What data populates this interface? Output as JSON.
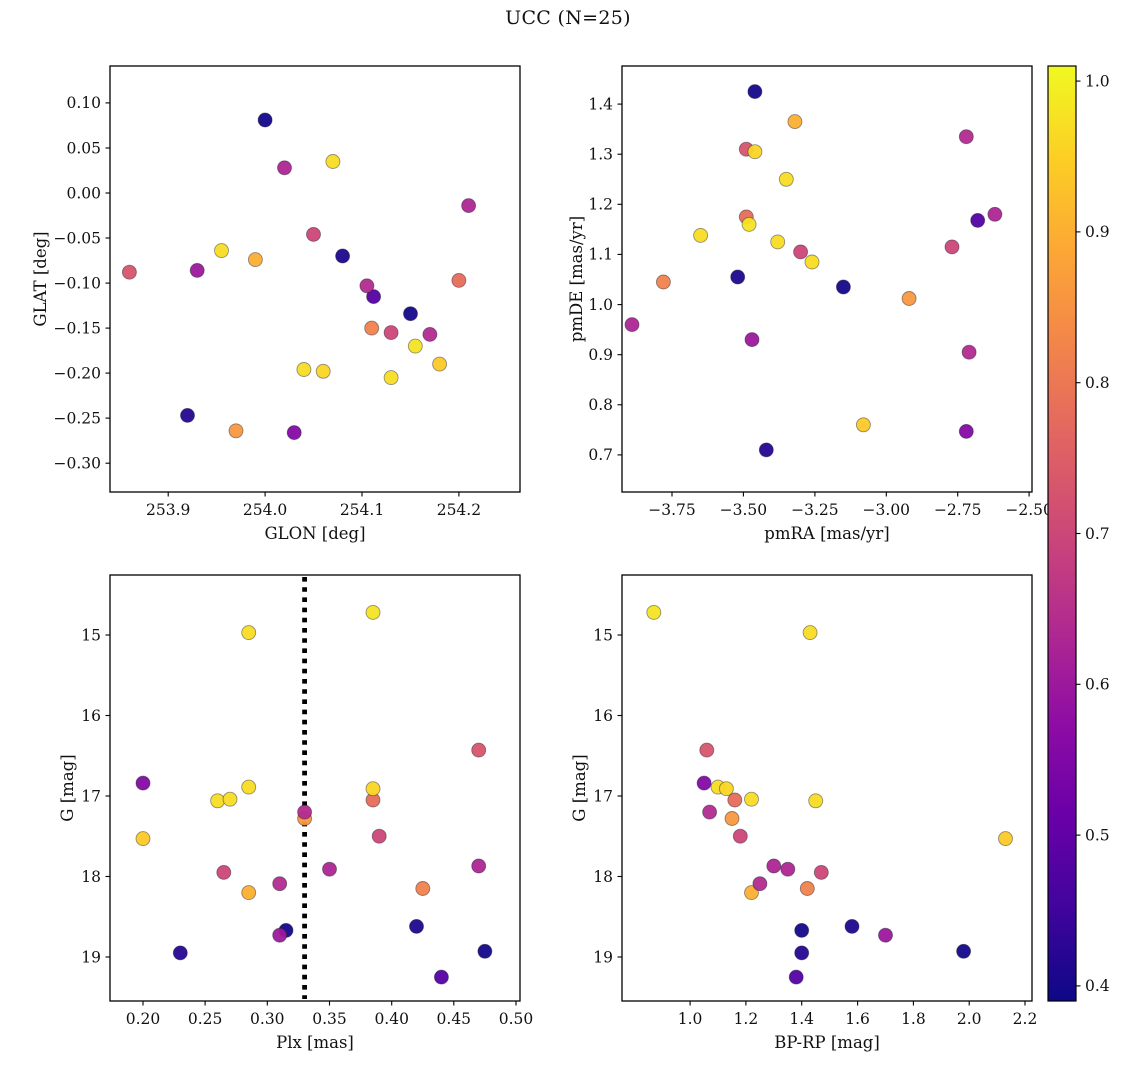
{
  "chart_data": {
    "type": "scatter",
    "title": "UCC (N=25)",
    "n_points": 25,
    "colormap": "plasma",
    "layout": "2x2 grid of panels sharing one membership-probability colorbar on the right",
    "colorbar": {
      "position": "right",
      "vmin": 0.39,
      "vmax": 1.01,
      "ticks": [
        0.4,
        0.5,
        0.6,
        0.7,
        0.8,
        0.9,
        1.0
      ],
      "tick_labels": [
        "0.4",
        "0.5",
        "0.6",
        "0.7",
        "0.8",
        "0.9",
        "1.0"
      ]
    },
    "panels": [
      {
        "id": "glon-glat",
        "xlabel": "GLON [deg]",
        "ylabel": "GLAT [deg]",
        "xkey": "glon",
        "ykey": "glat",
        "xlim": [
          253.84,
          254.263
        ],
        "ylim": [
          -0.332,
          0.141
        ],
        "xticks": [
          253.9,
          254.0,
          254.1,
          254.2
        ],
        "xtick_labels": [
          "253.9",
          "254.0",
          "254.1",
          "254.2"
        ],
        "yticks": [
          0.1,
          0.05,
          0.0,
          -0.05,
          -0.1,
          -0.15,
          -0.2,
          -0.25,
          -0.3
        ],
        "ytick_labels": [
          "0.10",
          "0.05",
          "0.00",
          "−0.05",
          "−0.10",
          "−0.15",
          "−0.20",
          "−0.25",
          "−0.30"
        ]
      },
      {
        "id": "pmra-pmde",
        "xlabel": "pmRA [mas/yr]",
        "ylabel": "pmDE [mas/yr]",
        "xkey": "pmra",
        "ykey": "pmde",
        "xlim": [
          -3.925,
          -2.49
        ],
        "ylim": [
          0.626,
          1.476
        ],
        "xticks": [
          -3.75,
          -3.5,
          -3.25,
          -3.0,
          -2.75,
          -2.5
        ],
        "xtick_labels": [
          "−3.75",
          "−3.50",
          "−3.25",
          "−3.00",
          "−2.75",
          "−2.50"
        ],
        "yticks": [
          0.7,
          0.8,
          0.9,
          1.0,
          1.1,
          1.2,
          1.3,
          1.4
        ],
        "ytick_labels": [
          "0.7",
          "0.8",
          "0.9",
          "1.0",
          "1.1",
          "1.2",
          "1.3",
          "1.4"
        ]
      },
      {
        "id": "plx-g",
        "xlabel": "Plx [mas]",
        "ylabel": "G [mag]",
        "xkey": "plx",
        "ykey": "g",
        "xlim": [
          0.1735,
          0.5032
        ],
        "ylim": [
          19.547,
          14.255
        ],
        "xticks": [
          0.2,
          0.25,
          0.3,
          0.35,
          0.4,
          0.45,
          0.5
        ],
        "xtick_labels": [
          "0.20",
          "0.25",
          "0.30",
          "0.35",
          "0.40",
          "0.45",
          "0.50"
        ],
        "yticks": [
          15,
          16,
          17,
          18,
          19
        ],
        "ytick_labels": [
          "15",
          "16",
          "17",
          "18",
          "19"
        ],
        "vline": {
          "x": 0.33,
          "style": "dotted",
          "color": "#000000"
        }
      },
      {
        "id": "bprp-g",
        "xlabel": "BP-RP [mag]",
        "ylabel": "G [mag]",
        "xkey": "bprp",
        "ykey": "g",
        "xlim": [
          0.756,
          2.225
        ],
        "ylim": [
          19.547,
          14.255
        ],
        "xticks": [
          1.0,
          1.2,
          1.4,
          1.6,
          1.8,
          2.0,
          2.2
        ],
        "xtick_labels": [
          "1.0",
          "1.2",
          "1.4",
          "1.6",
          "1.8",
          "2.0",
          "2.2"
        ],
        "yticks": [
          15,
          16,
          17,
          18,
          19
        ],
        "ytick_labels": [
          "15",
          "16",
          "17",
          "18",
          "19"
        ]
      }
    ],
    "stars": [
      {
        "glon": 254.0,
        "glat": 0.081,
        "pmra": -3.46,
        "pmde": 1.425,
        "plx": 0.315,
        "g": 18.67,
        "bprp": 1.4,
        "p": 0.4
      },
      {
        "glon": 254.02,
        "glat": 0.028,
        "pmra": -3.89,
        "pmde": 0.96,
        "plx": 0.35,
        "g": 17.91,
        "bprp": 1.35,
        "p": 0.63
      },
      {
        "glon": 254.07,
        "glat": 0.035,
        "pmra": -3.35,
        "pmde": 1.25,
        "plx": 0.285,
        "g": 14.97,
        "bprp": 1.43,
        "p": 0.97
      },
      {
        "glon": 253.86,
        "glat": -0.088,
        "pmra": -3.49,
        "pmde": 1.31,
        "plx": 0.47,
        "g": 16.43,
        "bprp": 1.06,
        "p": 0.73
      },
      {
        "glon": 253.93,
        "glat": -0.086,
        "pmra": -3.47,
        "pmde": 0.93,
        "plx": 0.31,
        "g": 18.73,
        "bprp": 1.7,
        "p": 0.6
      },
      {
        "glon": 253.955,
        "glat": -0.064,
        "pmra": -3.65,
        "pmde": 1.138,
        "plx": 0.26,
        "g": 17.06,
        "bprp": 1.45,
        "p": 0.97
      },
      {
        "glon": 253.99,
        "glat": -0.074,
        "pmra": -3.32,
        "pmde": 1.365,
        "plx": 0.285,
        "g": 18.2,
        "bprp": 1.22,
        "p": 0.9
      },
      {
        "glon": 254.05,
        "glat": -0.046,
        "pmra": -3.3,
        "pmde": 1.105,
        "plx": 0.265,
        "g": 17.95,
        "bprp": 1.47,
        "p": 0.7
      },
      {
        "glon": 254.08,
        "glat": -0.07,
        "pmra": -3.52,
        "pmde": 1.055,
        "plx": 0.42,
        "g": 18.62,
        "bprp": 1.58,
        "p": 0.41
      },
      {
        "glon": 254.112,
        "glat": -0.115,
        "pmra": -2.68,
        "pmde": 1.168,
        "plx": 0.44,
        "g": 19.25,
        "bprp": 1.38,
        "p": 0.48
      },
      {
        "glon": 254.21,
        "glat": -0.014,
        "pmra": -2.62,
        "pmde": 1.18,
        "plx": 0.47,
        "g": 17.87,
        "bprp": 1.3,
        "p": 0.63
      },
      {
        "glon": 254.2,
        "glat": -0.097,
        "pmra": -3.49,
        "pmde": 1.175,
        "plx": 0.385,
        "g": 17.05,
        "bprp": 1.16,
        "p": 0.78
      },
      {
        "glon": 254.15,
        "glat": -0.134,
        "pmra": -3.15,
        "pmde": 1.035,
        "plx": 0.475,
        "g": 18.93,
        "bprp": 1.98,
        "p": 0.4
      },
      {
        "glon": 254.11,
        "glat": -0.15,
        "pmra": -3.78,
        "pmde": 1.045,
        "plx": 0.425,
        "g": 18.15,
        "bprp": 1.42,
        "p": 0.82
      },
      {
        "glon": 254.13,
        "glat": -0.155,
        "pmra": -2.77,
        "pmde": 1.115,
        "plx": 0.39,
        "g": 17.5,
        "bprp": 1.18,
        "p": 0.7
      },
      {
        "glon": 254.17,
        "glat": -0.157,
        "pmra": -2.71,
        "pmde": 0.905,
        "plx": 0.31,
        "g": 18.09,
        "bprp": 1.25,
        "p": 0.64
      },
      {
        "glon": 254.155,
        "glat": -0.17,
        "pmra": -3.48,
        "pmde": 1.16,
        "plx": 0.385,
        "g": 14.72,
        "bprp": 0.87,
        "p": 0.98
      },
      {
        "glon": 254.18,
        "glat": -0.19,
        "pmra": -3.08,
        "pmde": 0.76,
        "plx": 0.2,
        "g": 17.53,
        "bprp": 2.13,
        "p": 0.94
      },
      {
        "glon": 254.13,
        "glat": -0.205,
        "pmra": -3.38,
        "pmde": 1.125,
        "plx": 0.27,
        "g": 17.04,
        "bprp": 1.22,
        "p": 0.97
      },
      {
        "glon": 254.04,
        "glat": -0.196,
        "pmra": -3.26,
        "pmde": 1.085,
        "plx": 0.285,
        "g": 16.89,
        "bprp": 1.1,
        "p": 0.97
      },
      {
        "glon": 254.06,
        "glat": -0.198,
        "pmra": -3.46,
        "pmde": 1.305,
        "plx": 0.385,
        "g": 16.91,
        "bprp": 1.13,
        "p": 0.96
      },
      {
        "glon": 253.92,
        "glat": -0.247,
        "pmra": -3.42,
        "pmde": 0.71,
        "plx": 0.23,
        "g": 18.95,
        "bprp": 1.4,
        "p": 0.42
      },
      {
        "glon": 253.97,
        "glat": -0.264,
        "pmra": -2.92,
        "pmde": 1.012,
        "plx": 0.33,
        "g": 17.28,
        "bprp": 1.15,
        "p": 0.86
      },
      {
        "glon": 254.03,
        "glat": -0.266,
        "pmra": -2.72,
        "pmde": 0.747,
        "plx": 0.2,
        "g": 16.84,
        "bprp": 1.05,
        "p": 0.56
      },
      {
        "glon": 254.105,
        "glat": -0.103,
        "pmra": -2.72,
        "pmde": 1.335,
        "plx": 0.33,
        "g": 17.2,
        "bprp": 1.07,
        "p": 0.64
      }
    ]
  }
}
